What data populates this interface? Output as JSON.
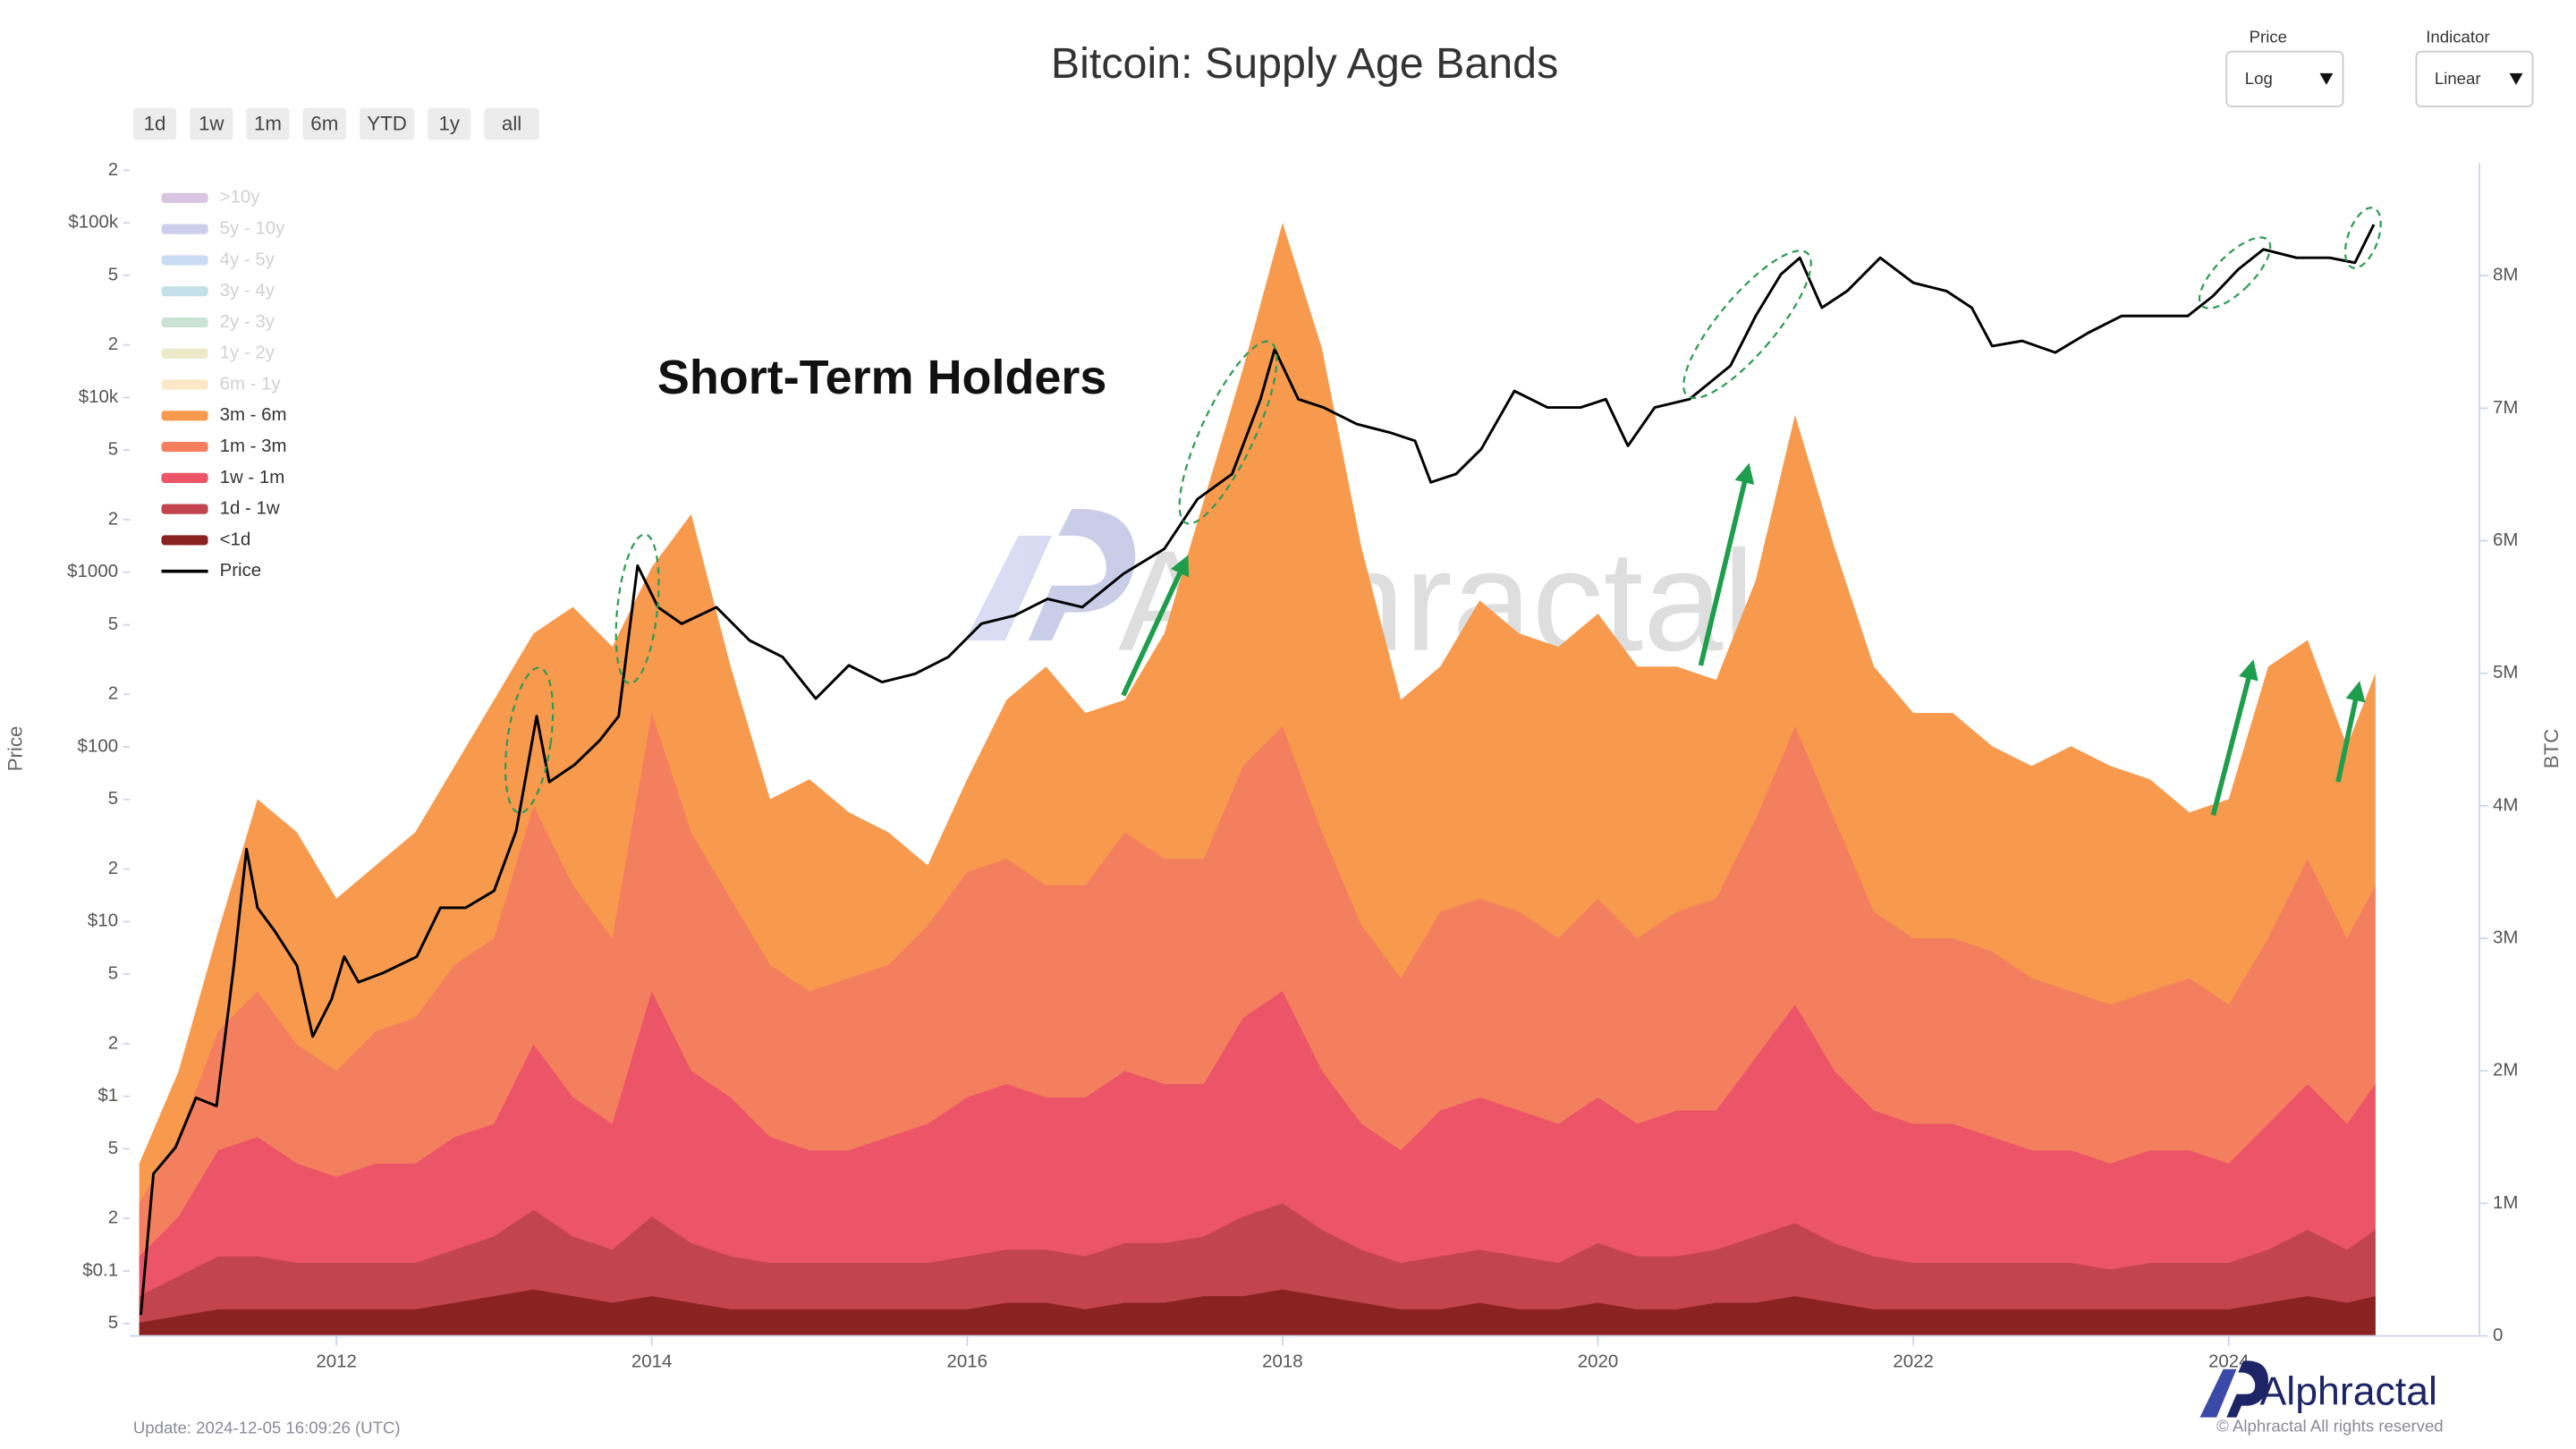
{
  "chart_data": {
    "type": "area",
    "title": "Bitcoin: Supply Age Bands",
    "range_buttons": [
      "1d",
      "1w",
      "1m",
      "6m",
      "YTD",
      "1y",
      "all"
    ],
    "controls": [
      {
        "label": "Price",
        "value": "Log"
      },
      {
        "label": "Indicator",
        "value": "Linear"
      }
    ],
    "annotation": "Short-Term Holders",
    "watermark": "Alphractal",
    "update": "Update: 2024-12-05 16:09:26 (UTC)",
    "brand": "Alphractal",
    "copyright": "© Alphractal All rights reserved",
    "ylabel": "Price",
    "y2label": "BTC",
    "yscale": "log",
    "x": [
      2010.75,
      2011,
      2011.25,
      2011.5,
      2011.75,
      2012,
      2012.25,
      2012.5,
      2012.75,
      2013,
      2013.25,
      2013.5,
      2013.75,
      2014,
      2014.25,
      2014.5,
      2014.75,
      2015,
      2015.25,
      2015.5,
      2015.75,
      2016,
      2016.25,
      2016.5,
      2016.75,
      2017,
      2017.25,
      2017.5,
      2017.75,
      2018,
      2018.25,
      2018.5,
      2018.75,
      2019,
      2019.25,
      2019.5,
      2019.75,
      2020,
      2020.25,
      2020.5,
      2020.75,
      2021,
      2021.25,
      2021.5,
      2021.75,
      2022,
      2022.25,
      2022.5,
      2022.75,
      2023,
      2023.25,
      2023.5,
      2023.75,
      2024,
      2024.25,
      2024.5,
      2024.75,
      2024.93
    ],
    "xlim": [
      2010.69,
      2025.59
    ],
    "xticks": [
      2012,
      2014,
      2016,
      2018,
      2020,
      2022,
      2024
    ],
    "ylim": [
      0.0425,
      220000
    ],
    "yticks": [
      {
        "value": 0.05,
        "label": "5"
      },
      {
        "value": 0.1,
        "label": "$0.1"
      },
      {
        "value": 0.2,
        "label": "2"
      },
      {
        "value": 0.5,
        "label": "5"
      },
      {
        "value": 1,
        "label": "$1"
      },
      2,
      5,
      {
        "value": 10,
        "label": "$10"
      },
      {
        "value": 20,
        "label": "2"
      },
      {
        "value": 50,
        "label": "5"
      },
      {
        "value": 100,
        "label": "$100"
      },
      {
        "value": 200,
        "label": "2"
      },
      {
        "value": 500,
        "label": "5"
      },
      {
        "value": 1000,
        "label": "$1000"
      },
      {
        "value": 2000,
        "label": "2"
      },
      {
        "value": 5000,
        "label": "5"
      },
      {
        "value": 10000,
        "label": "$10k"
      },
      {
        "value": 20000,
        "label": "2"
      },
      {
        "value": 50000,
        "label": "5"
      },
      {
        "value": 100000,
        "label": "$100k"
      },
      {
        "value": 200000,
        "label": "2"
      }
    ],
    "y2lim": [
      0,
      8.85
    ],
    "y2ticks": [
      0,
      {
        "value": 1,
        "label": "1M"
      },
      {
        "value": 2,
        "label": "2M"
      },
      {
        "value": 3,
        "label": "3M"
      },
      {
        "value": 4,
        "label": "4M"
      },
      {
        "value": 5,
        "label": "5M"
      },
      {
        "value": 6,
        "label": "6M"
      },
      {
        "value": 7,
        "label": "7M"
      },
      {
        "value": 8,
        "label": "8M"
      }
    ],
    "series": [
      {
        "name": ">10y",
        "color": "#b996c8",
        "visible": false
      },
      {
        "name": "5y - 10y",
        "color": "#a3a8de",
        "visible": false
      },
      {
        "name": "4y - 5y",
        "color": "#9ec0ea",
        "visible": false
      },
      {
        "name": "3y - 4y",
        "color": "#93c7d8",
        "visible": false
      },
      {
        "name": "2y - 3y",
        "color": "#9fcdb0",
        "visible": false
      },
      {
        "name": "1y - 2y",
        "color": "#dcd89a",
        "visible": false
      },
      {
        "name": "6m - 1y",
        "color": "#fbd79a",
        "visible": false
      },
      {
        "name": "3m - 6m",
        "color": "#f79a4e",
        "axis": "y2",
        "values": [
          0.3,
          0.5,
          0.75,
          1.45,
          1.6,
          1.3,
          1.25,
          1.4,
          1.5,
          1.8,
          1.3,
          2.1,
          2.2,
          1.1,
          2.4,
          1.75,
          1.25,
          1.6,
          1.25,
          1.0,
          0.45,
          0.7,
          1.2,
          1.65,
          1.3,
          1.0,
          1.7,
          2.7,
          3.0,
          3.8,
          3.65,
          2.85,
          2.1,
          1.85,
          2.25,
          2.1,
          2.2,
          2.15,
          2.05,
          1.85,
          1.65,
          1.8,
          2.35,
          2.05,
          1.85,
          1.7,
          1.7,
          1.55,
          1.6,
          1.85,
          1.8,
          1.6,
          1.25,
          1.55,
          2.05,
          1.65,
          1.45,
          1.6
        ]
      },
      {
        "name": "1m - 3m",
        "color": "#f47f5e",
        "axis": "y2",
        "values": [
          0.4,
          0.6,
          0.9,
          1.1,
          0.9,
          0.8,
          1.0,
          1.1,
          1.3,
          1.4,
          1.8,
          1.6,
          1.4,
          2.1,
          1.8,
          1.5,
          1.3,
          1.2,
          1.3,
          1.3,
          1.5,
          1.7,
          1.7,
          1.6,
          1.6,
          1.8,
          1.7,
          1.7,
          1.9,
          2.0,
          1.8,
          1.5,
          1.3,
          1.5,
          1.5,
          1.5,
          1.4,
          1.5,
          1.4,
          1.5,
          1.6,
          1.8,
          2.1,
          1.9,
          1.5,
          1.4,
          1.4,
          1.4,
          1.3,
          1.2,
          1.2,
          1.2,
          1.3,
          1.2,
          1.4,
          1.7,
          1.4,
          1.5
        ]
      },
      {
        "name": "1w - 1m",
        "color": "#ec5468",
        "axis": "y2",
        "values": [
          0.3,
          0.45,
          0.8,
          0.9,
          0.75,
          0.65,
          0.75,
          0.75,
          0.85,
          0.85,
          1.25,
          1.05,
          0.95,
          1.7,
          1.3,
          1.2,
          0.95,
          0.85,
          0.85,
          0.95,
          1.05,
          1.2,
          1.25,
          1.15,
          1.2,
          1.3,
          1.2,
          1.15,
          1.5,
          1.6,
          1.2,
          0.95,
          0.85,
          1.1,
          1.15,
          1.1,
          1.05,
          1.1,
          1.0,
          1.1,
          1.05,
          1.35,
          1.65,
          1.3,
          1.1,
          1.05,
          1.05,
          0.95,
          0.85,
          0.85,
          0.8,
          0.85,
          0.85,
          0.75,
          0.95,
          1.1,
          0.95,
          1.1
        ]
      },
      {
        "name": "1d - 1w",
        "color": "#c2444e",
        "axis": "y2",
        "values": [
          0.2,
          0.3,
          0.4,
          0.4,
          0.35,
          0.35,
          0.35,
          0.35,
          0.4,
          0.45,
          0.6,
          0.45,
          0.4,
          0.6,
          0.45,
          0.4,
          0.35,
          0.35,
          0.35,
          0.35,
          0.35,
          0.4,
          0.4,
          0.4,
          0.4,
          0.45,
          0.45,
          0.45,
          0.6,
          0.65,
          0.5,
          0.4,
          0.35,
          0.4,
          0.4,
          0.4,
          0.35,
          0.45,
          0.4,
          0.4,
          0.4,
          0.5,
          0.55,
          0.45,
          0.4,
          0.35,
          0.35,
          0.35,
          0.35,
          0.35,
          0.3,
          0.35,
          0.35,
          0.35,
          0.4,
          0.5,
          0.4,
          0.5
        ]
      },
      {
        "name": "<1d",
        "color": "#8b2222",
        "axis": "y2",
        "values": [
          0.1,
          0.15,
          0.2,
          0.2,
          0.2,
          0.2,
          0.2,
          0.2,
          0.25,
          0.3,
          0.35,
          0.3,
          0.25,
          0.3,
          0.25,
          0.2,
          0.2,
          0.2,
          0.2,
          0.2,
          0.2,
          0.2,
          0.25,
          0.25,
          0.2,
          0.25,
          0.25,
          0.3,
          0.3,
          0.35,
          0.3,
          0.25,
          0.2,
          0.2,
          0.25,
          0.2,
          0.2,
          0.25,
          0.2,
          0.2,
          0.25,
          0.25,
          0.3,
          0.25,
          0.2,
          0.2,
          0.2,
          0.2,
          0.2,
          0.2,
          0.2,
          0.2,
          0.2,
          0.2,
          0.25,
          0.3,
          0.25,
          0.3
        ]
      },
      {
        "name": "Price",
        "color": "#000000",
        "type": "line",
        "axis": "y",
        "x": [
          2010.76,
          2010.84,
          2010.98,
          2011.11,
          2011.24,
          2011.35,
          2011.43,
          2011.5,
          2011.61,
          2011.75,
          2011.85,
          2011.97,
          2012.05,
          2012.14,
          2012.3,
          2012.51,
          2012.66,
          2012.82,
          2013.0,
          2013.14,
          2013.27,
          2013.35,
          2013.51,
          2013.67,
          2013.79,
          2013.91,
          2014.04,
          2014.19,
          2014.41,
          2014.62,
          2014.83,
          2015.04,
          2015.25,
          2015.46,
          2015.67,
          2015.88,
          2016.09,
          2016.3,
          2016.51,
          2016.73,
          2016.99,
          2017.25,
          2017.46,
          2017.68,
          2017.86,
          2017.95,
          2018.1,
          2018.26,
          2018.47,
          2018.68,
          2018.84,
          2018.94,
          2019.1,
          2019.26,
          2019.47,
          2019.68,
          2019.89,
          2020.05,
          2020.19,
          2020.36,
          2020.58,
          2020.84,
          2021.0,
          2021.16,
          2021.28,
          2021.42,
          2021.58,
          2021.79,
          2022.0,
          2022.21,
          2022.37,
          2022.5,
          2022.69,
          2022.9,
          2023.11,
          2023.32,
          2023.53,
          2023.74,
          2023.9,
          2024.06,
          2024.22,
          2024.43,
          2024.64,
          2024.8,
          2024.92
        ],
        "values": [
          0.056,
          0.36,
          0.51,
          0.98,
          0.88,
          5.6,
          26,
          12,
          8.8,
          5.6,
          2.2,
          3.6,
          6.3,
          4.5,
          5.1,
          6.3,
          12,
          12,
          15,
          33,
          150,
          63,
          79,
          109,
          150,
          1090,
          630,
          507,
          630,
          407,
          327,
          189,
          293,
          235,
          262,
          327,
          507,
          565,
          704,
          631,
          978,
          1360,
          2620,
          3650,
          9780,
          18900,
          9780,
          8770,
          7050,
          6310,
          5650,
          3270,
          3650,
          5070,
          10900,
          8770,
          8770,
          9780,
          5290,
          8770,
          9780,
          15200,
          29300,
          50700,
          63100,
          32700,
          40700,
          63100,
          45400,
          40700,
          32700,
          19700,
          21100,
          18100,
          23500,
          29300,
          29300,
          29300,
          38100,
          54100,
          70500,
          63100,
          63100,
          59100,
          97800
        ]
      }
    ]
  }
}
